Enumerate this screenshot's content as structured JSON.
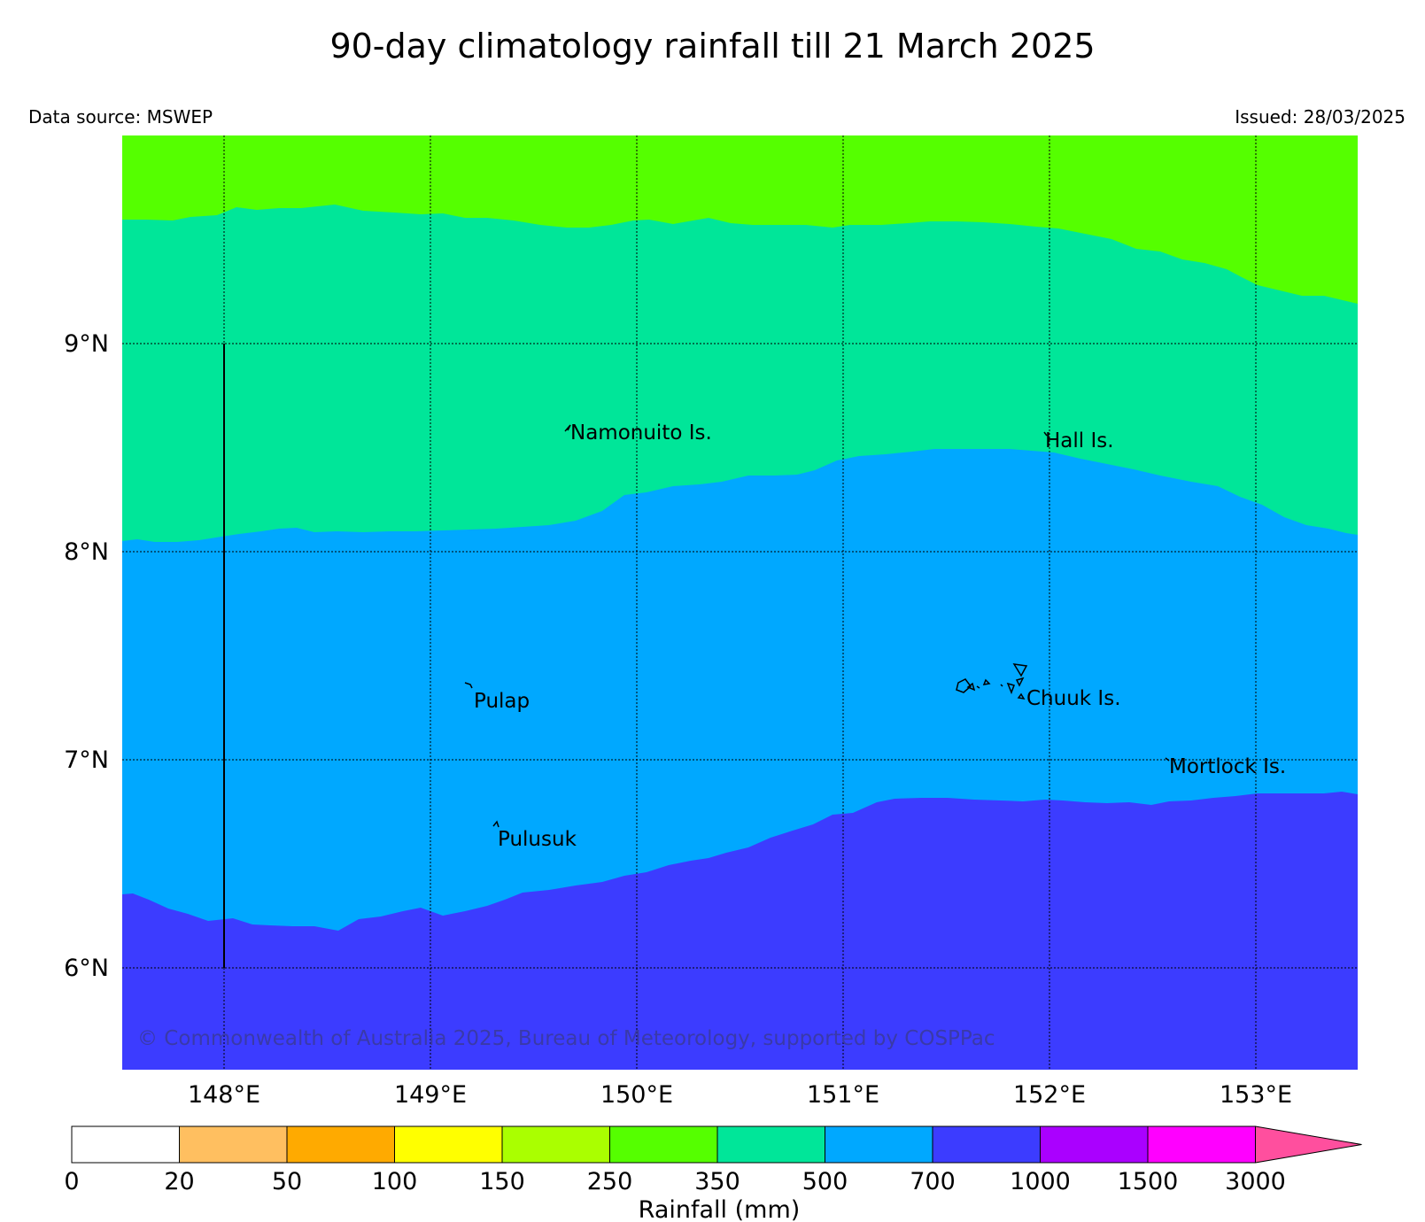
{
  "title": "90-day climatology rainfall till 21 March 2025",
  "data_source": "Data source: MSWEP",
  "issued": "Issued: 28/03/2025",
  "copyright": "© Commonwealth of Australia 2025, Bureau of Meteorology, supported by COSPPac",
  "latitude_labels": [
    "9°N",
    "8°N",
    "7°N",
    "6°N"
  ],
  "longitude_labels": [
    "148°E",
    "149°E",
    "150°E",
    "151°E",
    "152°E",
    "153°E"
  ],
  "places": [
    {
      "name": "Namonuito Is."
    },
    {
      "name": "Hall Is."
    },
    {
      "name": "Pulap"
    },
    {
      "name": "Chuuk Is."
    },
    {
      "name": "Mortlock Is."
    },
    {
      "name": "Pulusuk"
    }
  ],
  "colorbar": {
    "title": "Rainfall (mm)",
    "ticks": [
      "0",
      "20",
      "50",
      "100",
      "150",
      "250",
      "350",
      "500",
      "700",
      "1000",
      "1500",
      "3000"
    ],
    "colors": [
      "#ffffff",
      "#ffbf60",
      "#ffaa00",
      "#ffff00",
      "#aaff00",
      "#55ff00",
      "#00e699",
      "#00a8ff",
      "#3c3cff",
      "#aa00ff",
      "#ff00ff",
      "#ff4f9e"
    ]
  },
  "zone_colors": {
    "250-350": "#55ff00",
    "350-500": "#00e699",
    "500-700": "#00a8ff",
    "700-1000": "#3c3cff"
  }
}
